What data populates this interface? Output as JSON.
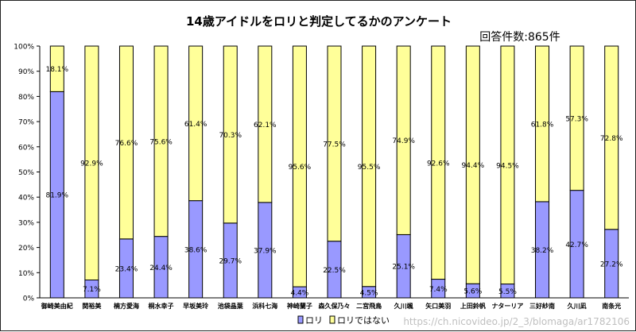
{
  "chart_data": {
    "type": "bar",
    "stacked": "percent",
    "title": "14歳アイドルをロリと判定してるかのアンケート",
    "subtitle": "回答件数:865件",
    "xlabel": "",
    "ylabel": "",
    "ylim": [
      0,
      100
    ],
    "y_ticks": [
      "0%",
      "10%",
      "20%",
      "30%",
      "40%",
      "50%",
      "60%",
      "70%",
      "80%",
      "90%",
      "100%"
    ],
    "grid": false,
    "legend_position": "bottom",
    "categories": [
      "御崎美由紀",
      "関裕美",
      "楠方愛海",
      "桐水幸子",
      "早坂美玲",
      "池袋晶葉",
      "浜科七海",
      "神崎蘭子",
      "森久保乃々",
      "二宮飛鳥",
      "久川颯",
      "矢口美羽",
      "上田鈴帆",
      "ナターリア",
      "三好紗南",
      "久川凪",
      "南条光"
    ],
    "series": [
      {
        "name": "ロリ",
        "color": "#9999ff",
        "values": [
          81.9,
          7.1,
          23.4,
          24.4,
          38.6,
          29.7,
          37.9,
          4.4,
          22.5,
          4.5,
          25.1,
          7.4,
          5.6,
          5.5,
          38.2,
          42.7,
          27.2
        ],
        "labels": [
          "81.9%",
          "7.1%",
          "23.4%",
          "24.4%",
          "38.6%",
          "29.7%",
          "37.9%",
          "4.4%",
          "22.5%",
          "4.5%",
          "25.1%",
          "7.4%",
          "5.6%",
          "5.5%",
          "38.2%",
          "42.7%",
          "27.2%"
        ]
      },
      {
        "name": "ロリではない",
        "color": "#ffff99",
        "values": [
          18.1,
          92.9,
          76.6,
          75.6,
          61.4,
          70.3,
          62.1,
          95.6,
          77.5,
          95.5,
          74.9,
          92.6,
          94.4,
          94.5,
          61.8,
          57.3,
          72.8
        ],
        "labels": [
          "18.1%",
          "92.9%",
          "76.6%",
          "75.6%",
          "61.4%",
          "70.3%",
          "62.1%",
          "95.6%",
          "77.5%",
          "95.5%",
          "74.9%",
          "92.6%",
          "94.4%",
          "94.5%",
          "61.8%",
          "57.3%",
          "72.8%"
        ]
      }
    ]
  },
  "watermark": "https://ch.nicovideo.jp/2_3/blomaga/ar1782106"
}
